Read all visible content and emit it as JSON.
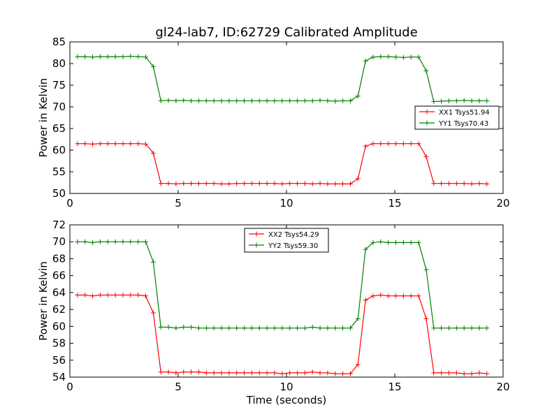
{
  "figure": {
    "title": "gl24-lab7, ID:62729 Calibrated Amplitude",
    "xlabel": "Time (seconds)"
  },
  "chart_data": [
    {
      "type": "line",
      "ylabel": "Power in Kelvin",
      "xlim": [
        0,
        20
      ],
      "ylim": [
        50,
        85
      ],
      "xticks": [
        0,
        5,
        10,
        15,
        20
      ],
      "yticks": [
        50,
        55,
        60,
        65,
        70,
        75,
        80,
        85
      ],
      "grid": false,
      "legend_position": "center-right",
      "x": [
        0.35,
        0.7,
        1.05,
        1.4,
        1.75,
        2.1,
        2.45,
        2.8,
        3.15,
        3.5,
        3.85,
        4.2,
        4.55,
        4.9,
        5.25,
        5.6,
        5.95,
        6.3,
        6.65,
        7.0,
        7.35,
        7.7,
        8.05,
        8.4,
        8.75,
        9.1,
        9.45,
        9.8,
        10.15,
        10.5,
        10.85,
        11.2,
        11.55,
        11.9,
        12.25,
        12.6,
        12.95,
        13.3,
        13.65,
        14.0,
        14.35,
        14.7,
        15.05,
        15.4,
        15.75,
        16.1,
        16.45,
        16.8,
        17.15,
        17.5,
        17.85,
        18.2,
        18.55,
        18.9,
        19.25
      ],
      "series": [
        {
          "name": "XX1 Tsys51.94",
          "color": "#ff0000",
          "values": [
            61.5,
            61.5,
            61.4,
            61.5,
            61.5,
            61.5,
            61.5,
            61.5,
            61.5,
            61.4,
            59.3,
            52.3,
            52.3,
            52.2,
            52.3,
            52.3,
            52.3,
            52.3,
            52.3,
            52.2,
            52.2,
            52.3,
            52.3,
            52.3,
            52.3,
            52.3,
            52.3,
            52.2,
            52.3,
            52.3,
            52.3,
            52.2,
            52.3,
            52.2,
            52.2,
            52.2,
            52.2,
            53.4,
            60.9,
            61.5,
            61.5,
            61.5,
            61.5,
            61.5,
            61.5,
            61.5,
            58.5,
            52.3,
            52.3,
            52.3,
            52.3,
            52.3,
            52.2,
            52.3,
            52.2
          ]
        },
        {
          "name": "YY1 Tsys70.43",
          "color": "#008000",
          "values": [
            81.6,
            81.6,
            81.5,
            81.6,
            81.6,
            81.6,
            81.6,
            81.7,
            81.6,
            81.5,
            79.3,
            71.4,
            71.5,
            71.4,
            71.5,
            71.4,
            71.4,
            71.4,
            71.4,
            71.4,
            71.4,
            71.4,
            71.4,
            71.4,
            71.4,
            71.4,
            71.4,
            71.4,
            71.4,
            71.4,
            71.4,
            71.4,
            71.5,
            71.4,
            71.3,
            71.4,
            71.4,
            72.5,
            80.6,
            81.5,
            81.6,
            81.6,
            81.5,
            81.4,
            81.5,
            81.5,
            78.3,
            71.2,
            71.3,
            71.4,
            71.4,
            71.5,
            71.4,
            71.4,
            71.4
          ]
        }
      ]
    },
    {
      "type": "line",
      "ylabel": "Power in Kelvin",
      "xlabel": "Time (seconds)",
      "xlim": [
        0,
        20
      ],
      "ylim": [
        54,
        72
      ],
      "xticks": [
        0,
        5,
        10,
        15,
        20
      ],
      "yticks": [
        54,
        56,
        58,
        60,
        62,
        64,
        66,
        68,
        70,
        72
      ],
      "grid": false,
      "legend_position": "top-center",
      "x": [
        0.35,
        0.7,
        1.05,
        1.4,
        1.75,
        2.1,
        2.45,
        2.8,
        3.15,
        3.5,
        3.85,
        4.2,
        4.55,
        4.9,
        5.25,
        5.6,
        5.95,
        6.3,
        6.65,
        7.0,
        7.35,
        7.7,
        8.05,
        8.4,
        8.75,
        9.1,
        9.45,
        9.8,
        10.15,
        10.5,
        10.85,
        11.2,
        11.55,
        11.9,
        12.25,
        12.6,
        12.95,
        13.3,
        13.65,
        14.0,
        14.35,
        14.7,
        15.05,
        15.4,
        15.75,
        16.1,
        16.45,
        16.8,
        17.15,
        17.5,
        17.85,
        18.2,
        18.55,
        18.9,
        19.25
      ],
      "series": [
        {
          "name": "XX2 Tsys54.29",
          "color": "#ff0000",
          "values": [
            63.7,
            63.7,
            63.6,
            63.7,
            63.7,
            63.7,
            63.7,
            63.7,
            63.7,
            63.6,
            61.6,
            54.6,
            54.6,
            54.5,
            54.6,
            54.6,
            54.6,
            54.5,
            54.5,
            54.5,
            54.5,
            54.5,
            54.5,
            54.5,
            54.5,
            54.5,
            54.5,
            54.4,
            54.5,
            54.5,
            54.5,
            54.6,
            54.5,
            54.5,
            54.4,
            54.4,
            54.4,
            55.5,
            63.1,
            63.6,
            63.7,
            63.6,
            63.6,
            63.6,
            63.6,
            63.6,
            60.9,
            54.5,
            54.5,
            54.5,
            54.5,
            54.4,
            54.4,
            54.5,
            54.4
          ]
        },
        {
          "name": "YY2 Tsys59.30",
          "color": "#008000",
          "values": [
            70.0,
            70.0,
            69.9,
            70.0,
            70.0,
            70.0,
            70.0,
            70.0,
            70.0,
            70.0,
            67.6,
            59.9,
            59.9,
            59.8,
            59.9,
            59.9,
            59.8,
            59.8,
            59.8,
            59.8,
            59.8,
            59.8,
            59.8,
            59.8,
            59.8,
            59.8,
            59.8,
            59.8,
            59.8,
            59.8,
            59.8,
            59.9,
            59.8,
            59.8,
            59.8,
            59.8,
            59.8,
            60.9,
            69.1,
            69.9,
            70.0,
            69.9,
            69.9,
            69.9,
            69.9,
            69.9,
            66.7,
            59.8,
            59.8,
            59.8,
            59.8,
            59.8,
            59.8,
            59.8,
            59.8
          ]
        }
      ]
    }
  ]
}
